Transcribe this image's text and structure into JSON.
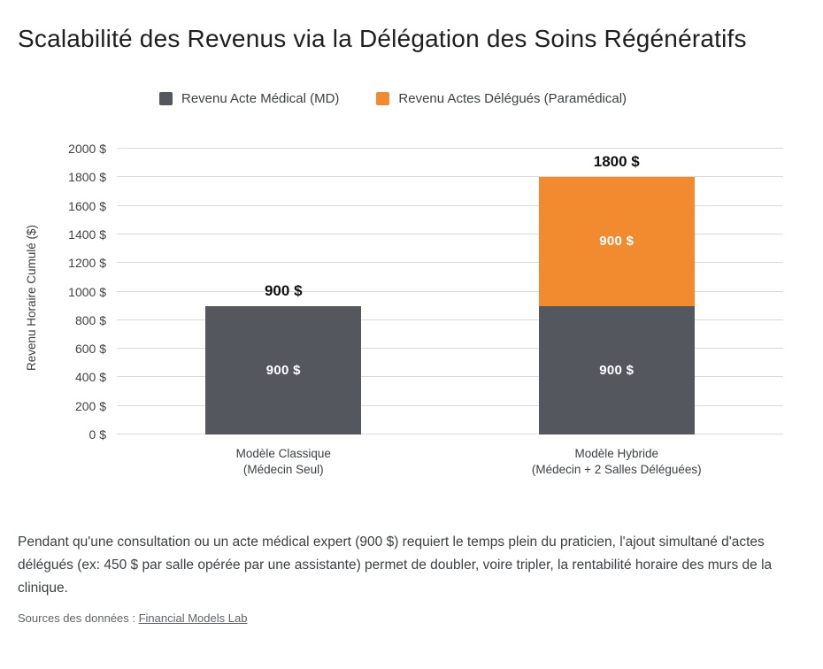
{
  "title": "Scalabilité des Revenus via la Délégation des Soins Régénératifs",
  "legend": [
    {
      "label": "Revenu Acte Médical (MD)",
      "color": "#54575D"
    },
    {
      "label": "Revenu Actes Délégués (Paramédical)",
      "color": "#F28B30"
    }
  ],
  "chart_data": {
    "type": "bar",
    "stacked": true,
    "title": "Scalabilité des Revenus via la Délégation des Soins Régénératifs",
    "ylabel": "Revenu Horaire Cumulé ($)",
    "xlabel": "",
    "ylim": [
      0,
      2000
    ],
    "ytick_step": 200,
    "ytick_labels": [
      "0 $",
      "200 $",
      "400 $",
      "600 $",
      "800 $",
      "1000 $",
      "1200 $",
      "1400 $",
      "1600 $",
      "1800 $",
      "2000 $"
    ],
    "grid": true,
    "legend_position": "top",
    "value_suffix": " $",
    "categories": [
      {
        "line1": "Modèle Classique",
        "line2": "(Médecin Seul)"
      },
      {
        "line1": "Modèle Hybride",
        "line2": "(Médecin + 2 Salles Déléguées)"
      }
    ],
    "series": [
      {
        "name": "Revenu Acte Médical (MD)",
        "color": "#54575D",
        "values": [
          900,
          900
        ]
      },
      {
        "name": "Revenu Actes Délégués (Paramédical)",
        "color": "#F28B30",
        "values": [
          0,
          900
        ]
      }
    ],
    "segment_labels": [
      [
        "900 $",
        "900 $"
      ],
      [
        "",
        "900 $"
      ]
    ],
    "totals": [
      900,
      1800
    ],
    "total_labels": [
      "900 $",
      "1800 $"
    ]
  },
  "description": "Pendant qu'une consultation ou un acte médical expert (900 $) requiert le temps plein du praticien, l'ajout simultané d'actes délégués (ex: 450 $ par salle opérée par une assistante) permet de doubler, voire tripler, la rentabilité horaire des murs de la clinique.",
  "source": {
    "prefix": "Sources des données : ",
    "link_label": "Financial Models Lab"
  }
}
